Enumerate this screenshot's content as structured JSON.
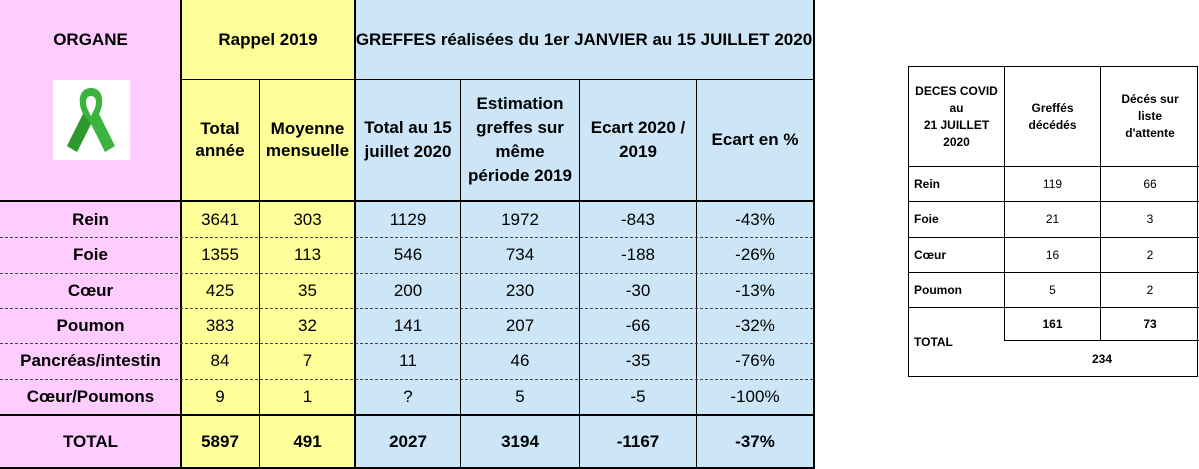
{
  "main_table": {
    "header": {
      "organe": "ORGANE",
      "rappel": "Rappel 2019",
      "greffes": "GREFFES réalisées du 1er JANVIER au 15 JUILLET 2020",
      "total_annee_1": "Total",
      "total_annee_2": "année",
      "moyenne_1": "Moyenne",
      "moyenne_2": "mensuelle",
      "total_15_1": "Total au 15",
      "total_15_2": "juillet 2020",
      "estimation_1": "Estimation",
      "estimation_2": "greffes sur",
      "estimation_3": "même",
      "estimation_4": "période 2019",
      "ecart_1": "Ecart 2020 /",
      "ecart_2": "2019",
      "ecart_pct": "Ecart en %"
    },
    "ribbon_icon": "green-awareness-ribbon",
    "rows": [
      {
        "organe": "Rein",
        "total_annee": "3641",
        "moyenne": "303",
        "total_2020": "1129",
        "estimation": "1972",
        "ecart": "-843",
        "ecart_pct": "-43%"
      },
      {
        "organe": "Foie",
        "total_annee": "1355",
        "moyenne": "113",
        "total_2020": "546",
        "estimation": "734",
        "ecart": "-188",
        "ecart_pct": "-26%"
      },
      {
        "organe": "Cœur",
        "total_annee": "425",
        "moyenne": "35",
        "total_2020": "200",
        "estimation": "230",
        "ecart": "-30",
        "ecart_pct": "-13%"
      },
      {
        "organe": "Poumon",
        "total_annee": "383",
        "moyenne": "32",
        "total_2020": "141",
        "estimation": "207",
        "ecart": "-66",
        "ecart_pct": "-32%"
      },
      {
        "organe": "Pancréas/intestin",
        "total_annee": "84",
        "moyenne": "7",
        "total_2020": "11",
        "estimation": "46",
        "ecart": "-35",
        "ecart_pct": "-76%"
      },
      {
        "organe": "Cœur/Poumons",
        "total_annee": "9",
        "moyenne": "1",
        "total_2020": "?",
        "estimation": "5",
        "ecart": "-5",
        "ecart_pct": "-100%"
      }
    ],
    "total": {
      "organe": "TOTAL",
      "total_annee": "5897",
      "moyenne": "491",
      "total_2020": "2027",
      "estimation": "3194",
      "ecart": "-1167",
      "ecart_pct": "-37%"
    },
    "colors": {
      "pink": "#ffccff",
      "yellow": "#ffff99",
      "blue": "#cce6f7",
      "ribbon": "#3cb33c"
    }
  },
  "covid_table": {
    "header": {
      "deces_1": "DECES COVID",
      "deces_2": "au",
      "deces_3": "21 JUILLET",
      "deces_4": "2020",
      "greffes_1": "Greffés",
      "greffes_2": "décédés",
      "liste_1": "Décés sur",
      "liste_2": "liste",
      "liste_3": "d'attente"
    },
    "rows": [
      {
        "organe": "Rein",
        "greffes": "119",
        "liste": "66"
      },
      {
        "organe": "Foie",
        "greffes": "21",
        "liste": "3"
      },
      {
        "organe": "Cœur",
        "greffes": "16",
        "liste": "2"
      },
      {
        "organe": "Poumon",
        "greffes": "5",
        "liste": "2"
      }
    ],
    "total": {
      "label": "TOTAL",
      "greffes": "161",
      "liste": "73",
      "sum": "234"
    }
  }
}
